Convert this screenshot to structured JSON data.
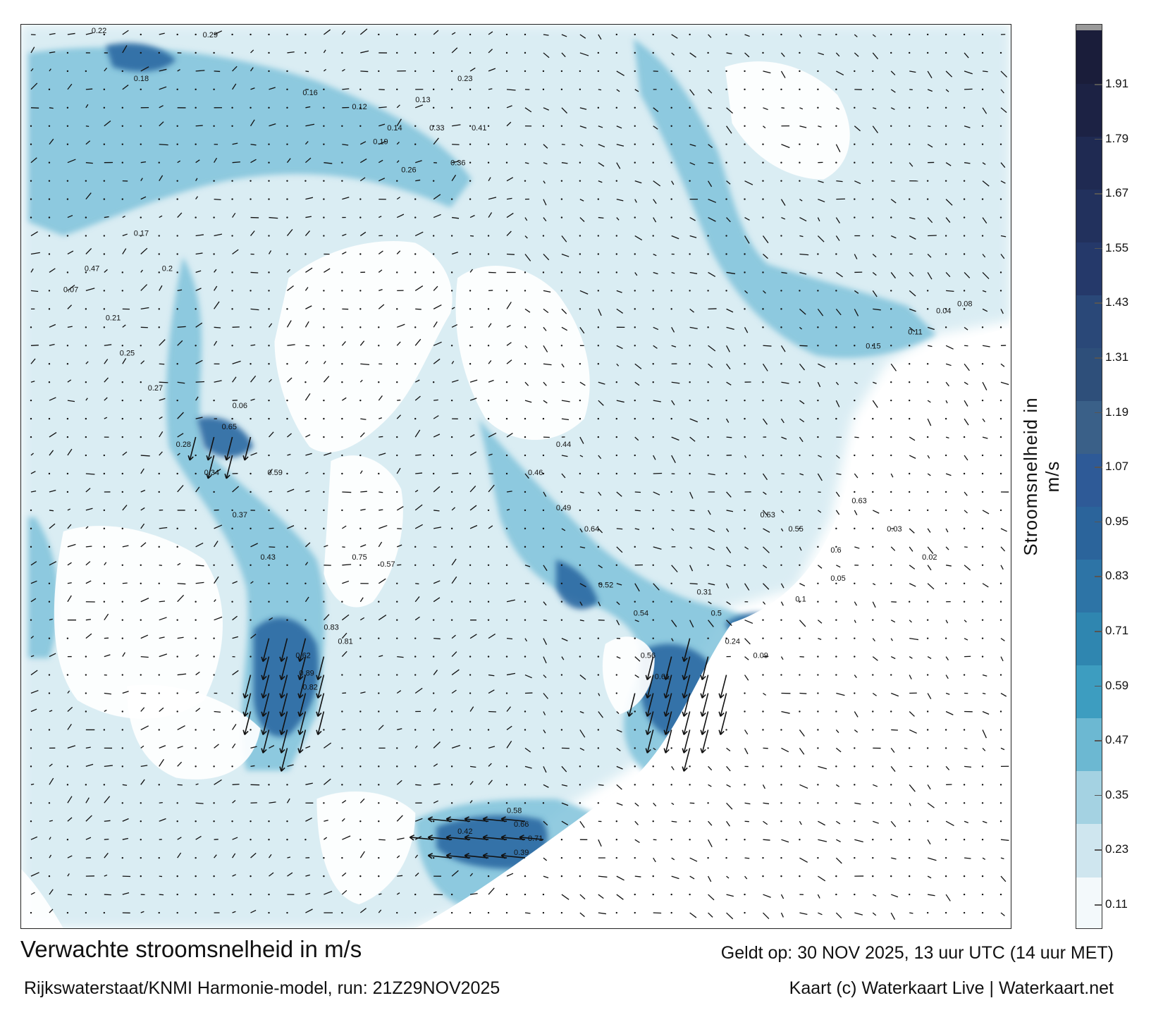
{
  "title": "Verwachte stroomsnelheid in m/s",
  "source": "Rijkswaterstaat/KNMI Harmonie-model, run: 21Z29NOV2025",
  "valid_time": "Geldt op: 30 NOV 2025, 13 uur UTC (14 uur MET)",
  "credit": "Kaart (c) Waterkaart Live | Waterkaart.net",
  "colorbar": {
    "label": "Stroomsnelheid in m/s",
    "ticks": [
      "0.11",
      "0.23",
      "0.35",
      "0.47",
      "0.59",
      "0.71",
      "0.83",
      "0.95",
      "1.07",
      "1.19",
      "1.31",
      "1.43",
      "1.55",
      "1.67",
      "1.79",
      "1.91"
    ],
    "colors": [
      "#f3f9fb",
      "#cfe6ef",
      "#a4d2e2",
      "#6cb8d2",
      "#3d9dc0",
      "#2f86b0",
      "#2d74a6",
      "#2b649b",
      "#2e5a97",
      "#3a6088",
      "#2e4f7a",
      "#2a4878",
      "#25396a",
      "#22315d",
      "#1f2a52",
      "#1c2244",
      "#1a1d3a"
    ]
  },
  "map": {
    "water_colors": {
      "light": "#d6ebf2",
      "medium": "#7fc2da",
      "strong": "#3b92bf",
      "deep": "#2c6aa3"
    },
    "sample_labels": [
      "0.22",
      "0.29",
      "0.18",
      "0.16",
      "0.12",
      "0.14",
      "0.13",
      "0.23",
      "0.19",
      "0.26",
      "0.33",
      "0.36",
      "0.41",
      "0.47",
      "0.07",
      "0.06",
      "0.65",
      "0.59",
      "0.62",
      "0.89",
      "0.82",
      "0.83",
      "0.81",
      "0.75",
      "0.57",
      "0.64",
      "0.52",
      "0.54",
      "0.56",
      "0.61",
      "0.66",
      "0.71",
      "0.58",
      "0.42",
      "0.39",
      "0.31",
      "0.5",
      "0.24",
      "0.09",
      "0.1",
      "0.05",
      "0.03",
      "0.02",
      "0.04",
      "0.08",
      "0.11",
      "0.15",
      "0.17",
      "0.2",
      "0.21",
      "0.25",
      "0.27",
      "0.28",
      "0.34",
      "0.37",
      "0.43",
      "0.44",
      "0.46",
      "0.49",
      "0.53",
      "0.55",
      "0.6",
      "0.63"
    ]
  }
}
